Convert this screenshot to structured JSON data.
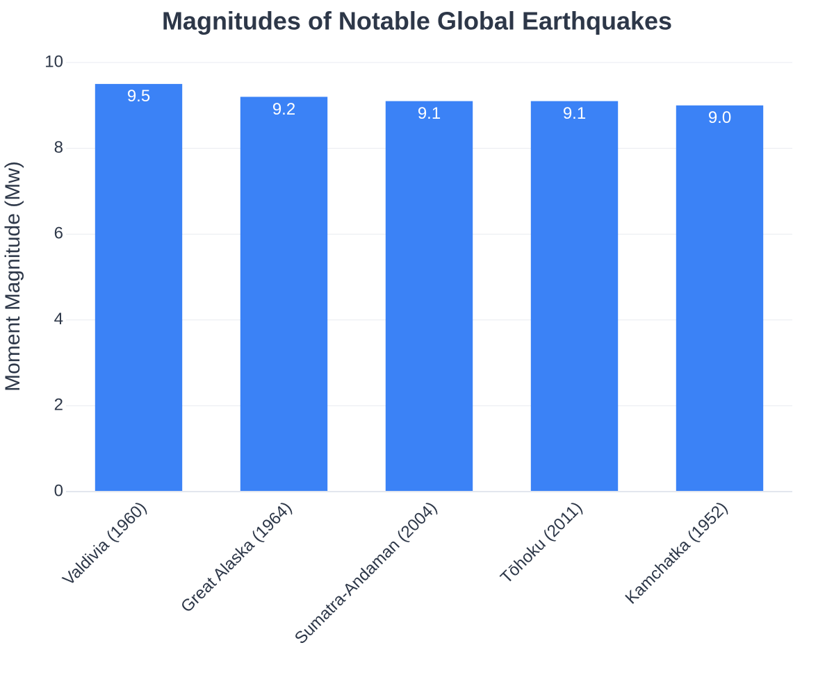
{
  "chart_data": {
    "type": "bar",
    "title": "Magnitudes of Notable Global Earthquakes",
    "y_label": "Moment Magnitude (Mw)",
    "categories": [
      "Valdivia (1960)",
      "Great Alaska (1964)",
      "Sumatra-Andaman (2004)",
      "Tōhoku (2011)",
      "Kamchatka (1952)"
    ],
    "values": [
      9.5,
      9.2,
      9.1,
      9.1,
      9.0
    ],
    "value_labels": [
      "9.5",
      "9.2",
      "9.1",
      "9.1",
      "9.0"
    ],
    "color": "#3b82f6",
    "ylim": [
      0,
      10
    ],
    "yticks": [
      0,
      2,
      4,
      6,
      8,
      10
    ],
    "grid": true
  }
}
